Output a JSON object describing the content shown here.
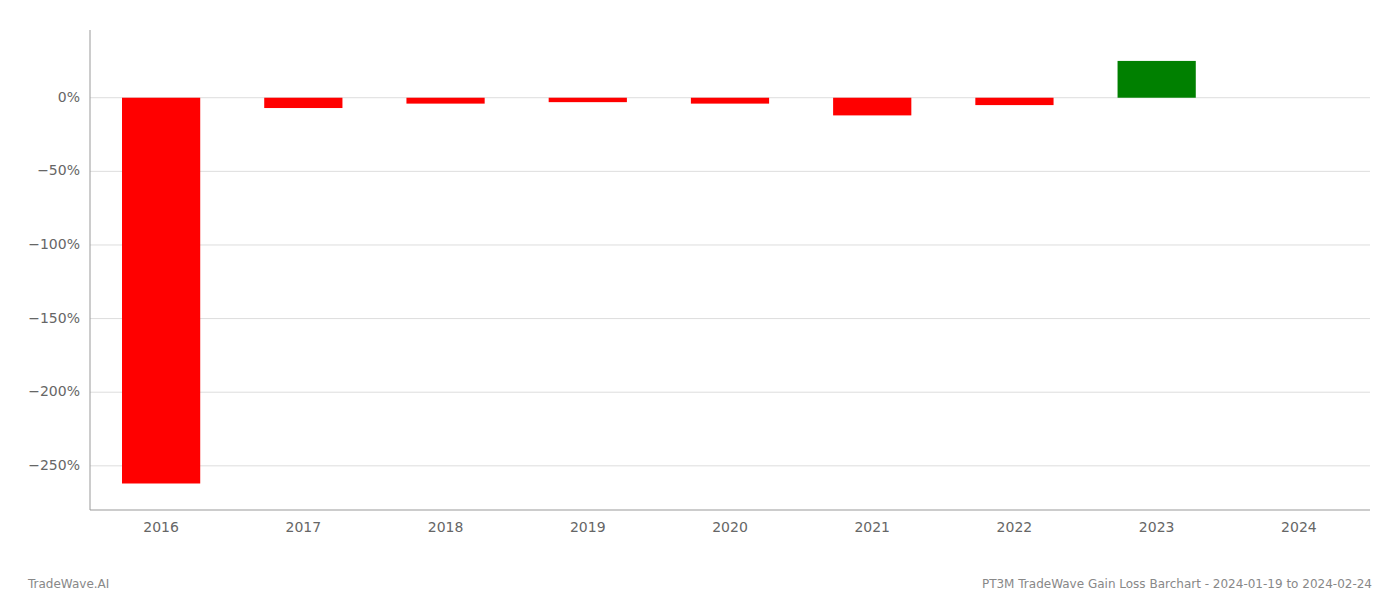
{
  "chart_data": {
    "type": "bar",
    "categories": [
      "2016",
      "2017",
      "2018",
      "2019",
      "2020",
      "2021",
      "2022",
      "2023",
      "2024"
    ],
    "values": [
      -2.62,
      -0.07,
      -0.04,
      -0.03,
      -0.04,
      -0.12,
      -0.05,
      0.25,
      0.0
    ],
    "colors": [
      "#ff0000",
      "#ff0000",
      "#ff0000",
      "#ff0000",
      "#ff0000",
      "#ff0000",
      "#ff0000",
      "#008000",
      "#ff0000"
    ],
    "ylim": [
      -2.8,
      0.46
    ],
    "yticks": [
      {
        "value": 0.0,
        "label": "0%"
      },
      {
        "value": -0.5,
        "label": "−50%"
      },
      {
        "value": -1.0,
        "label": "−100%"
      },
      {
        "value": -1.5,
        "label": "−150%"
      },
      {
        "value": -2.0,
        "label": "−200%"
      },
      {
        "value": -2.5,
        "label": "−250%"
      }
    ],
    "grid": true,
    "annotations": [
      "TradeWave.AI",
      "PT3M TradeWave Gain Loss Barchart - 2024-01-19 to 2024-02-24"
    ]
  }
}
